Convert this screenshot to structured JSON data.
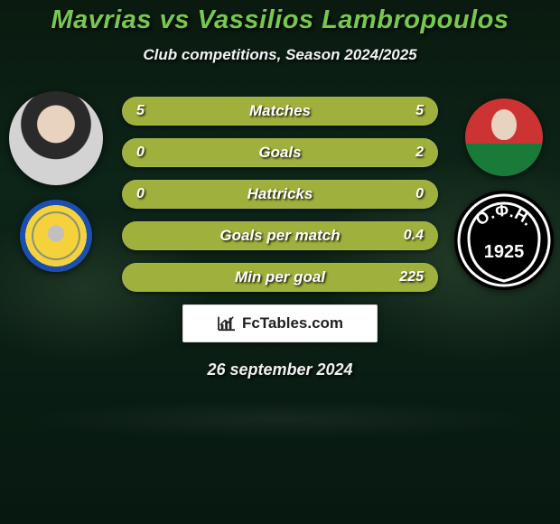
{
  "title": {
    "text": "Mavrias vs Vassilios Lambropoulos",
    "color": "#78c850",
    "fontsize": 29
  },
  "subtitle": {
    "text": "Club competitions, Season 2024/2025",
    "fontsize": 17
  },
  "players": {
    "left": {
      "name": "Mavrias"
    },
    "right": {
      "name": "Vassilios Lambropoulos"
    }
  },
  "clubs": {
    "right_badge_text_top": "Ο.Φ.Η.",
    "right_badge_year": "1925"
  },
  "stats": {
    "row_bg": "#a0b03c",
    "label_color": "#ffffff",
    "value_color": "#ffffff",
    "label_fontsize": 17,
    "value_fontsize": 16,
    "rows": [
      {
        "label": "Matches",
        "left": "5",
        "right": "5"
      },
      {
        "label": "Goals",
        "left": "0",
        "right": "2"
      },
      {
        "label": "Hattricks",
        "left": "0",
        "right": "0"
      },
      {
        "label": "Goals per match",
        "left": "",
        "right": "0.4"
      },
      {
        "label": "Min per goal",
        "left": "",
        "right": "225"
      }
    ]
  },
  "footer": {
    "brand": "FcTables.com"
  },
  "date": {
    "text": "26 september 2024",
    "fontsize": 18
  }
}
